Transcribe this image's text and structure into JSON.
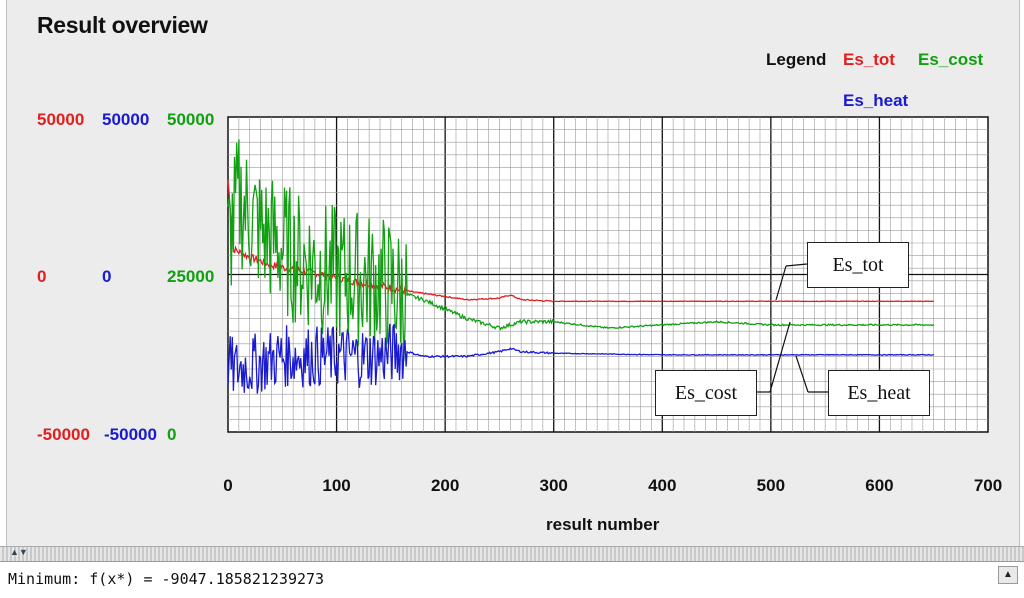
{
  "header": {
    "title": "Result overview"
  },
  "legend": {
    "label": "Legend",
    "entries": [
      "Es_tot",
      "Es_cost",
      "Es_heat"
    ]
  },
  "colors": {
    "Es_tot": "#e02020",
    "Es_heat": "#1a1ad0",
    "Es_cost": "#11a011"
  },
  "axes": {
    "left_red": {
      "top": "50000",
      "mid": "0",
      "bottom": "-50000"
    },
    "left_blue": {
      "top": "50000",
      "mid": "0",
      "bottom": "-50000"
    },
    "left_green": {
      "top": "50000",
      "mid": "25000",
      "bottom": "0"
    },
    "x_ticks": [
      "0",
      "100",
      "200",
      "300",
      "400",
      "500",
      "600",
      "700"
    ],
    "x_label": "result number"
  },
  "callouts": {
    "tot": "Es_tot",
    "cost": "Es_cost",
    "heat": "Es_heat"
  },
  "console": {
    "text": "Minimum: f(x*) = -9047.185821239273"
  },
  "chart_data": {
    "type": "line",
    "title": "Result overview",
    "xlabel": "result number",
    "ylabel": "",
    "xlim": [
      0,
      700
    ],
    "grid": true,
    "legend_placement": "top-right",
    "series": [
      {
        "name": "Es_tot",
        "axis": "red",
        "ylim": [
          -50000,
          50000
        ],
        "x": [
          0,
          5,
          20,
          40,
          60,
          80,
          100,
          120,
          140,
          160,
          180,
          200,
          220,
          250,
          260,
          270,
          300,
          400,
          500,
          600,
          650
        ],
        "y": [
          30000,
          8000,
          5500,
          3000,
          1500,
          500,
          -1000,
          -2500,
          -3500,
          -5000,
          -6000,
          -7000,
          -8000,
          -7500,
          -6500,
          -8000,
          -8500,
          -8500,
          -8500,
          -8500,
          -8500
        ]
      },
      {
        "name": "Es_cost",
        "axis": "green",
        "ylim": [
          0,
          50000
        ],
        "x": [
          0,
          10,
          30,
          60,
          100,
          140,
          160,
          180,
          200,
          220,
          250,
          270,
          300,
          350,
          400,
          450,
          500,
          550,
          600,
          650
        ],
        "y": [
          30000,
          37000,
          32000,
          28000,
          25000,
          24000,
          22000,
          21000,
          19500,
          18000,
          16500,
          17500,
          17500,
          16500,
          17000,
          17500,
          17000,
          17000,
          17000,
          17000
        ]
      },
      {
        "name": "Es_heat",
        "axis": "blue",
        "ylim": [
          -50000,
          50000
        ],
        "x": [
          0,
          5,
          20,
          50,
          100,
          140,
          160,
          180,
          200,
          220,
          250,
          260,
          270,
          300,
          400,
          500,
          600,
          650
        ],
        "y": [
          -28000,
          -30000,
          -29000,
          -26000,
          -26000,
          -26000,
          -24000,
          -26000,
          -26000,
          -26000,
          -24500,
          -23500,
          -24500,
          -25000,
          -25500,
          -25500,
          -25500,
          -25500
        ]
      }
    ]
  }
}
